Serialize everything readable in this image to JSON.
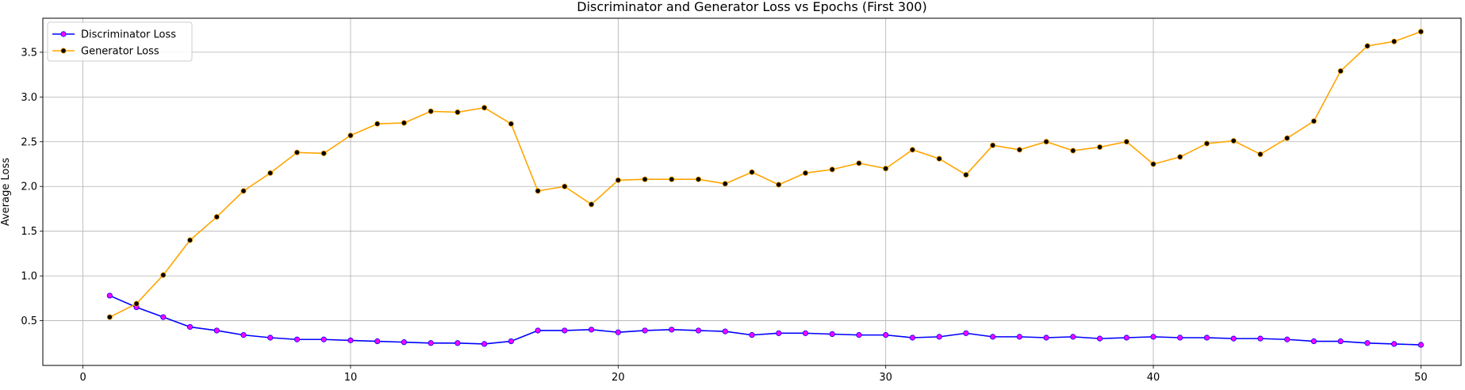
{
  "chart_data": {
    "type": "line",
    "title": "Discriminator and Generator Loss vs Epochs (First 300)",
    "xlabel": "",
    "ylabel": "Average Loss",
    "xlim": [
      -1.5,
      51.5
    ],
    "ylim": [
      0.0,
      3.88
    ],
    "xticks": [
      0,
      10,
      20,
      30,
      40,
      50
    ],
    "yticks": [
      0.5,
      1.0,
      1.5,
      2.0,
      2.5,
      3.0,
      3.5
    ],
    "grid": true,
    "legend_position": "top-left",
    "x": [
      1,
      2,
      3,
      4,
      5,
      6,
      7,
      8,
      9,
      10,
      11,
      12,
      13,
      14,
      15,
      16,
      17,
      18,
      19,
      20,
      21,
      22,
      23,
      24,
      25,
      26,
      27,
      28,
      29,
      30,
      31,
      32,
      33,
      34,
      35,
      36,
      37,
      38,
      39,
      40,
      41,
      42,
      43,
      44,
      45,
      46,
      47,
      48,
      49,
      50
    ],
    "series": [
      {
        "name": "Discriminator Loss",
        "color": "#0000ff",
        "marker_color": "#ff00ff",
        "values": [
          0.78,
          0.65,
          0.54,
          0.43,
          0.39,
          0.34,
          0.31,
          0.29,
          0.29,
          0.28,
          0.27,
          0.26,
          0.25,
          0.25,
          0.24,
          0.27,
          0.39,
          0.39,
          0.4,
          0.37,
          0.39,
          0.4,
          0.39,
          0.38,
          0.34,
          0.36,
          0.36,
          0.35,
          0.34,
          0.34,
          0.31,
          0.32,
          0.36,
          0.32,
          0.32,
          0.31,
          0.32,
          0.3,
          0.31,
          0.32,
          0.31,
          0.31,
          0.3,
          0.3,
          0.29,
          0.27,
          0.27,
          0.25,
          0.24,
          0.23
        ]
      },
      {
        "name": "Generator Loss",
        "color": "#ffa500",
        "marker_color": "#000000",
        "values": [
          0.54,
          0.69,
          1.01,
          1.4,
          1.66,
          1.95,
          2.15,
          2.38,
          2.37,
          2.57,
          2.7,
          2.71,
          2.84,
          2.83,
          2.88,
          2.7,
          1.95,
          2.0,
          1.8,
          2.07,
          2.08,
          2.08,
          2.08,
          2.03,
          2.16,
          2.02,
          2.15,
          2.19,
          2.26,
          2.2,
          2.41,
          2.31,
          2.13,
          2.46,
          2.41,
          2.5,
          2.4,
          2.44,
          2.5,
          2.25,
          2.33,
          2.48,
          2.51,
          2.36,
          2.54,
          2.73,
          3.29,
          3.57,
          3.62,
          3.73
        ]
      }
    ]
  }
}
